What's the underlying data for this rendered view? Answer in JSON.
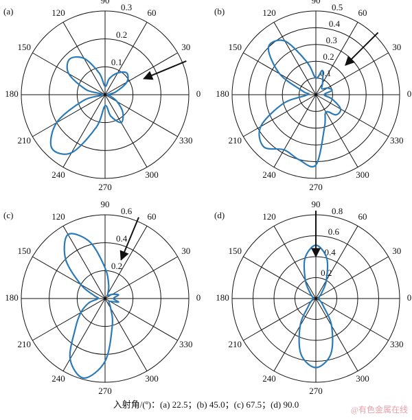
{
  "chart_data": [
    {
      "type": "polar",
      "label": "(a)",
      "rlim": [
        0,
        0.3
      ],
      "rticks": [
        0.1,
        0.2,
        0.3
      ],
      "thetaticks": [
        0,
        30,
        60,
        90,
        120,
        150,
        180,
        210,
        240,
        270,
        300,
        330
      ],
      "arrow_angle": 22.5,
      "theta": [
        0,
        15,
        30,
        45,
        60,
        75,
        90,
        105,
        120,
        135,
        150,
        165,
        180,
        195,
        210,
        225,
        240,
        255,
        270,
        285,
        300,
        315,
        330,
        345
      ],
      "series": [
        {
          "color": "#2a7ab8",
          "values": [
            0.01,
            0.04,
            0.09,
            0.11,
            0.09,
            0.06,
            0.03,
            0.08,
            0.15,
            0.18,
            0.15,
            0.07,
            0.01,
            0.08,
            0.2,
            0.27,
            0.24,
            0.12,
            0.04,
            0.08,
            0.115,
            0.09,
            0.05,
            0.02
          ]
        }
      ]
    },
    {
      "type": "polar",
      "label": "(b)",
      "rlim": [
        0,
        0.5
      ],
      "rticks": [
        0.1,
        0.2,
        0.3,
        0.4,
        0.5
      ],
      "thetaticks": [
        0,
        30,
        60,
        90,
        120,
        150,
        180,
        210,
        240,
        270,
        300,
        330
      ],
      "arrow_angle": 45.0,
      "theta": [
        0,
        15,
        30,
        45,
        60,
        75,
        90,
        105,
        120,
        135,
        150,
        165,
        180,
        195,
        210,
        225,
        240,
        255,
        270,
        285,
        300,
        315,
        330,
        345
      ],
      "series": [
        {
          "color": "#2a7ab8",
          "values": [
            0.05,
            0.1,
            0.08,
            0.05,
            0.08,
            0.15,
            0.1,
            0.2,
            0.37,
            0.4,
            0.25,
            0.08,
            0.05,
            0.2,
            0.38,
            0.44,
            0.38,
            0.4,
            0.42,
            0.2,
            0.12,
            0.17,
            0.17,
            0.1
          ]
        }
      ]
    },
    {
      "type": "polar",
      "label": "(c)",
      "rlim": [
        0,
        0.6
      ],
      "rticks": [
        0.2,
        0.4,
        0.6
      ],
      "thetaticks": [
        0,
        30,
        60,
        90,
        120,
        150,
        180,
        210,
        240,
        270,
        300,
        330
      ],
      "arrow_angle": 67.5,
      "theta": [
        0,
        15,
        30,
        45,
        60,
        75,
        90,
        105,
        120,
        135,
        150,
        165,
        180,
        195,
        210,
        225,
        240,
        255,
        270,
        285,
        300,
        315,
        330,
        345
      ],
      "series": [
        {
          "color": "#2a7ab8",
          "values": [
            0.06,
            0.1,
            0.06,
            0.03,
            0.04,
            0.1,
            0.22,
            0.42,
            0.53,
            0.4,
            0.2,
            0.08,
            0.05,
            0.12,
            0.2,
            0.3,
            0.5,
            0.59,
            0.45,
            0.2,
            0.08,
            0.04,
            0.04,
            0.1
          ]
        }
      ]
    },
    {
      "type": "polar",
      "label": "(d)",
      "rlim": [
        0,
        0.8
      ],
      "rticks": [
        0.2,
        0.4,
        0.6,
        0.8
      ],
      "thetaticks": [
        0,
        30,
        60,
        90,
        120,
        150,
        180,
        210,
        240,
        270,
        300,
        330
      ],
      "arrow_angle": 90.0,
      "theta": [
        0,
        15,
        30,
        45,
        60,
        75,
        90,
        105,
        120,
        135,
        150,
        165,
        180,
        195,
        210,
        225,
        240,
        255,
        270,
        285,
        300,
        315,
        330,
        345
      ],
      "series": [
        {
          "color": "#2a7ab8",
          "values": [
            0.03,
            0.03,
            0.04,
            0.08,
            0.2,
            0.4,
            0.51,
            0.4,
            0.2,
            0.08,
            0.04,
            0.03,
            0.03,
            0.03,
            0.05,
            0.1,
            0.3,
            0.55,
            0.66,
            0.55,
            0.3,
            0.1,
            0.05,
            0.03
          ]
        }
      ]
    }
  ],
  "caption": "入射角/(º)：(a) 22.5；(b) 45.0；(c) 67.5；(d) 90.0",
  "watermark": "@有色金属在线"
}
